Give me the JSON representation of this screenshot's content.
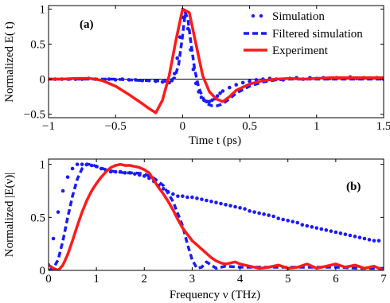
{
  "chart_data": [
    {
      "type": "line",
      "panel_label": "(a)",
      "xlabel": "Time  t (ps)",
      "ylabel": "Normalized E( t)",
      "xlim": [
        -1,
        1.5
      ],
      "ylim": [
        -0.55,
        1.05
      ],
      "xticks": [
        -1,
        -0.5,
        0,
        0.5,
        1,
        1.5
      ],
      "xtick_labels": [
        "−1",
        "−0.5",
        "0",
        "0.5",
        "1",
        "1.5"
      ],
      "yticks": [
        -0.5,
        0,
        0.5,
        1
      ],
      "ytick_labels": [
        "−0.5",
        "0",
        "0.5",
        "1"
      ],
      "legend_position": "top-right",
      "zero_line": true,
      "series": [
        {
          "name": "Simulation",
          "style": "dotted-markers",
          "color": "#1a1aff",
          "x": [
            -1.0,
            -0.95,
            -0.9,
            -0.85,
            -0.8,
            -0.75,
            -0.7,
            -0.65,
            -0.6,
            -0.55,
            -0.5,
            -0.45,
            -0.4,
            -0.35,
            -0.3,
            -0.25,
            -0.2,
            -0.15,
            -0.1,
            -0.08,
            -0.06,
            -0.04,
            -0.02,
            0.0,
            0.02,
            0.04,
            0.06,
            0.08,
            0.1,
            0.12,
            0.14,
            0.16,
            0.18,
            0.2,
            0.22,
            0.24,
            0.26,
            0.28,
            0.3,
            0.35,
            0.4,
            0.45,
            0.5,
            0.55,
            0.6,
            0.65,
            0.7,
            0.75,
            0.8,
            0.85,
            0.9,
            0.95,
            1.0,
            1.05,
            1.1,
            1.15,
            1.2,
            1.25,
            1.3,
            1.35,
            1.4,
            1.45,
            1.5
          ],
          "y": [
            0.0,
            0.0,
            0.0,
            0.0,
            0.0,
            0.0,
            0.01,
            0.0,
            -0.01,
            0.0,
            -0.01,
            0.0,
            -0.01,
            -0.01,
            -0.02,
            -0.02,
            -0.03,
            -0.04,
            -0.05,
            -0.02,
            0.08,
            0.3,
            0.6,
            0.88,
            0.9,
            0.72,
            0.42,
            0.14,
            -0.06,
            -0.18,
            -0.26,
            -0.3,
            -0.32,
            -0.32,
            -0.3,
            -0.28,
            -0.24,
            -0.2,
            -0.17,
            -0.12,
            -0.08,
            -0.05,
            -0.03,
            -0.01,
            0.0,
            0.01,
            0.0,
            -0.01,
            0.01,
            0.02,
            0.0,
            0.02,
            0.01,
            0.02,
            0.01,
            0.02,
            0.01,
            0.03,
            0.01,
            0.02,
            0.01,
            0.02,
            0.0
          ]
        },
        {
          "name": "Filtered simulation",
          "style": "dashed",
          "color": "#1a1aff",
          "x": [
            -1.0,
            -0.8,
            -0.6,
            -0.5,
            -0.4,
            -0.3,
            -0.2,
            -0.15,
            -0.1,
            -0.06,
            -0.03,
            0.0,
            0.02,
            0.04,
            0.06,
            0.09,
            0.12,
            0.15,
            0.18,
            0.22,
            0.26,
            0.3,
            0.35,
            0.4,
            0.5,
            0.6,
            0.7,
            0.8,
            1.0,
            1.2,
            1.5
          ],
          "y": [
            0.0,
            0.0,
            0.0,
            0.0,
            -0.01,
            -0.02,
            -0.02,
            -0.03,
            -0.03,
            0.02,
            0.2,
            0.62,
            0.95,
            0.85,
            0.55,
            0.14,
            -0.12,
            -0.26,
            -0.35,
            -0.38,
            -0.38,
            -0.35,
            -0.28,
            -0.2,
            -0.1,
            -0.04,
            -0.01,
            0.0,
            0.0,
            0.0,
            0.0
          ]
        },
        {
          "name": "Experiment",
          "style": "solid",
          "color": "#ff1a1a",
          "x": [
            -1.0,
            -0.9,
            -0.8,
            -0.7,
            -0.65,
            -0.6,
            -0.5,
            -0.4,
            -0.3,
            -0.25,
            -0.2,
            -0.15,
            -0.1,
            -0.05,
            0.0,
            0.05,
            0.1,
            0.15,
            0.2,
            0.25,
            0.3,
            0.35,
            0.4,
            0.5,
            0.6,
            0.7,
            0.8,
            0.9,
            1.0,
            1.1,
            1.2,
            1.3,
            1.4,
            1.5
          ],
          "y": [
            0.0,
            0.0,
            0.01,
            0.01,
            0.0,
            -0.02,
            -0.1,
            -0.22,
            -0.35,
            -0.42,
            -0.48,
            -0.3,
            0.05,
            0.55,
            1.0,
            0.95,
            0.5,
            0.05,
            -0.18,
            -0.28,
            -0.32,
            -0.25,
            -0.16,
            -0.07,
            -0.02,
            0.0,
            0.01,
            0.0,
            0.01,
            0.02,
            0.02,
            0.02,
            0.02,
            0.02
          ]
        }
      ]
    },
    {
      "type": "line",
      "panel_label": "(b)",
      "xlabel": "Frequency ν (THz)",
      "ylabel": "Normalized |E(ν)|",
      "xlim": [
        0,
        7
      ],
      "ylim": [
        0,
        1.05
      ],
      "xticks": [
        0,
        1,
        2,
        3,
        4,
        5,
        6,
        7
      ],
      "xtick_labels": [
        "0",
        "1",
        "2",
        "3",
        "4",
        "5",
        "6",
        "7"
      ],
      "yticks": [
        0,
        0.5,
        1
      ],
      "ytick_labels": [
        "0",
        "0.5",
        "1"
      ],
      "series": [
        {
          "name": "Simulation",
          "style": "dotted-markers",
          "color": "#1a1aff",
          "x": [
            0.0,
            0.1,
            0.2,
            0.3,
            0.4,
            0.5,
            0.6,
            0.7,
            0.8,
            0.9,
            1.0,
            1.1,
            1.2,
            1.3,
            1.4,
            1.5,
            1.6,
            1.7,
            1.8,
            1.9,
            2.0,
            2.1,
            2.2,
            2.3,
            2.4,
            2.5,
            2.6,
            2.7,
            2.8,
            2.9,
            3.0,
            3.1,
            3.2,
            3.3,
            3.4,
            3.5,
            3.6,
            3.7,
            3.8,
            3.9,
            4.0,
            4.1,
            4.2,
            4.3,
            4.4,
            4.5,
            4.6,
            4.7,
            4.8,
            4.9,
            5.0,
            5.1,
            5.2,
            5.3,
            5.4,
            5.5,
            5.6,
            5.7,
            5.8,
            5.9,
            6.0,
            6.1,
            6.2,
            6.3,
            6.4,
            6.5,
            6.6,
            6.7,
            6.8,
            6.9
          ],
          "y": [
            0.05,
            0.3,
            0.55,
            0.75,
            0.88,
            0.96,
            1.0,
            1.0,
            1.0,
            0.99,
            0.98,
            0.96,
            0.94,
            0.93,
            0.93,
            0.93,
            0.92,
            0.92,
            0.91,
            0.9,
            0.89,
            0.87,
            0.84,
            0.8,
            0.77,
            0.74,
            0.72,
            0.7,
            0.7,
            0.69,
            0.69,
            0.68,
            0.67,
            0.66,
            0.65,
            0.64,
            0.63,
            0.62,
            0.61,
            0.6,
            0.59,
            0.58,
            0.56,
            0.55,
            0.54,
            0.53,
            0.52,
            0.51,
            0.49,
            0.48,
            0.47,
            0.46,
            0.45,
            0.43,
            0.42,
            0.41,
            0.4,
            0.39,
            0.38,
            0.37,
            0.36,
            0.35,
            0.34,
            0.33,
            0.32,
            0.31,
            0.3,
            0.29,
            0.28,
            0.28
          ]
        },
        {
          "name": "Filtered simulation",
          "style": "dashed",
          "color": "#1a1aff",
          "x": [
            0.0,
            0.1,
            0.2,
            0.3,
            0.4,
            0.5,
            0.6,
            0.7,
            0.8,
            0.9,
            1.0,
            1.2,
            1.4,
            1.6,
            1.8,
            2.0,
            2.2,
            2.4,
            2.6,
            2.8,
            2.9,
            3.0,
            3.1,
            3.2,
            3.3,
            3.4,
            3.5,
            3.7,
            4.0,
            4.5,
            5.0,
            5.5,
            6.0,
            6.5,
            7.0
          ],
          "y": [
            0.0,
            0.02,
            0.1,
            0.28,
            0.5,
            0.7,
            0.86,
            0.96,
            1.0,
            1.0,
            0.98,
            0.95,
            0.93,
            0.92,
            0.92,
            0.91,
            0.87,
            0.8,
            0.65,
            0.42,
            0.25,
            0.1,
            0.02,
            0.03,
            0.08,
            0.05,
            0.02,
            0.04,
            0.03,
            0.03,
            0.03,
            0.03,
            0.03,
            0.02,
            0.02
          ]
        },
        {
          "name": "Experiment",
          "style": "solid",
          "color": "#ff1a1a",
          "x": [
            0.0,
            0.1,
            0.2,
            0.3,
            0.4,
            0.5,
            0.6,
            0.7,
            0.8,
            0.9,
            1.0,
            1.1,
            1.2,
            1.3,
            1.4,
            1.5,
            1.6,
            1.7,
            1.8,
            1.9,
            2.0,
            2.1,
            2.2,
            2.3,
            2.4,
            2.5,
            2.6,
            2.7,
            2.8,
            2.9,
            3.0,
            3.1,
            3.2,
            3.3,
            3.4,
            3.5,
            3.6,
            3.7,
            3.8,
            3.9,
            4.0,
            4.2,
            4.4,
            4.6,
            4.8,
            5.0,
            5.2,
            5.4,
            5.6,
            5.8,
            6.0,
            6.2,
            6.4,
            6.6,
            6.8,
            7.0
          ],
          "y": [
            0.05,
            0.02,
            0.0,
            0.05,
            0.15,
            0.28,
            0.42,
            0.55,
            0.66,
            0.75,
            0.82,
            0.88,
            0.93,
            0.97,
            0.99,
            1.0,
            0.99,
            0.99,
            0.98,
            0.97,
            0.95,
            0.92,
            0.85,
            0.78,
            0.72,
            0.65,
            0.57,
            0.48,
            0.4,
            0.34,
            0.28,
            0.24,
            0.2,
            0.16,
            0.12,
            0.09,
            0.07,
            0.06,
            0.07,
            0.08,
            0.06,
            0.04,
            0.02,
            0.03,
            0.05,
            0.02,
            0.03,
            0.06,
            0.02,
            0.04,
            0.06,
            0.03,
            0.05,
            0.02,
            0.04,
            0.0
          ]
        }
      ]
    }
  ]
}
